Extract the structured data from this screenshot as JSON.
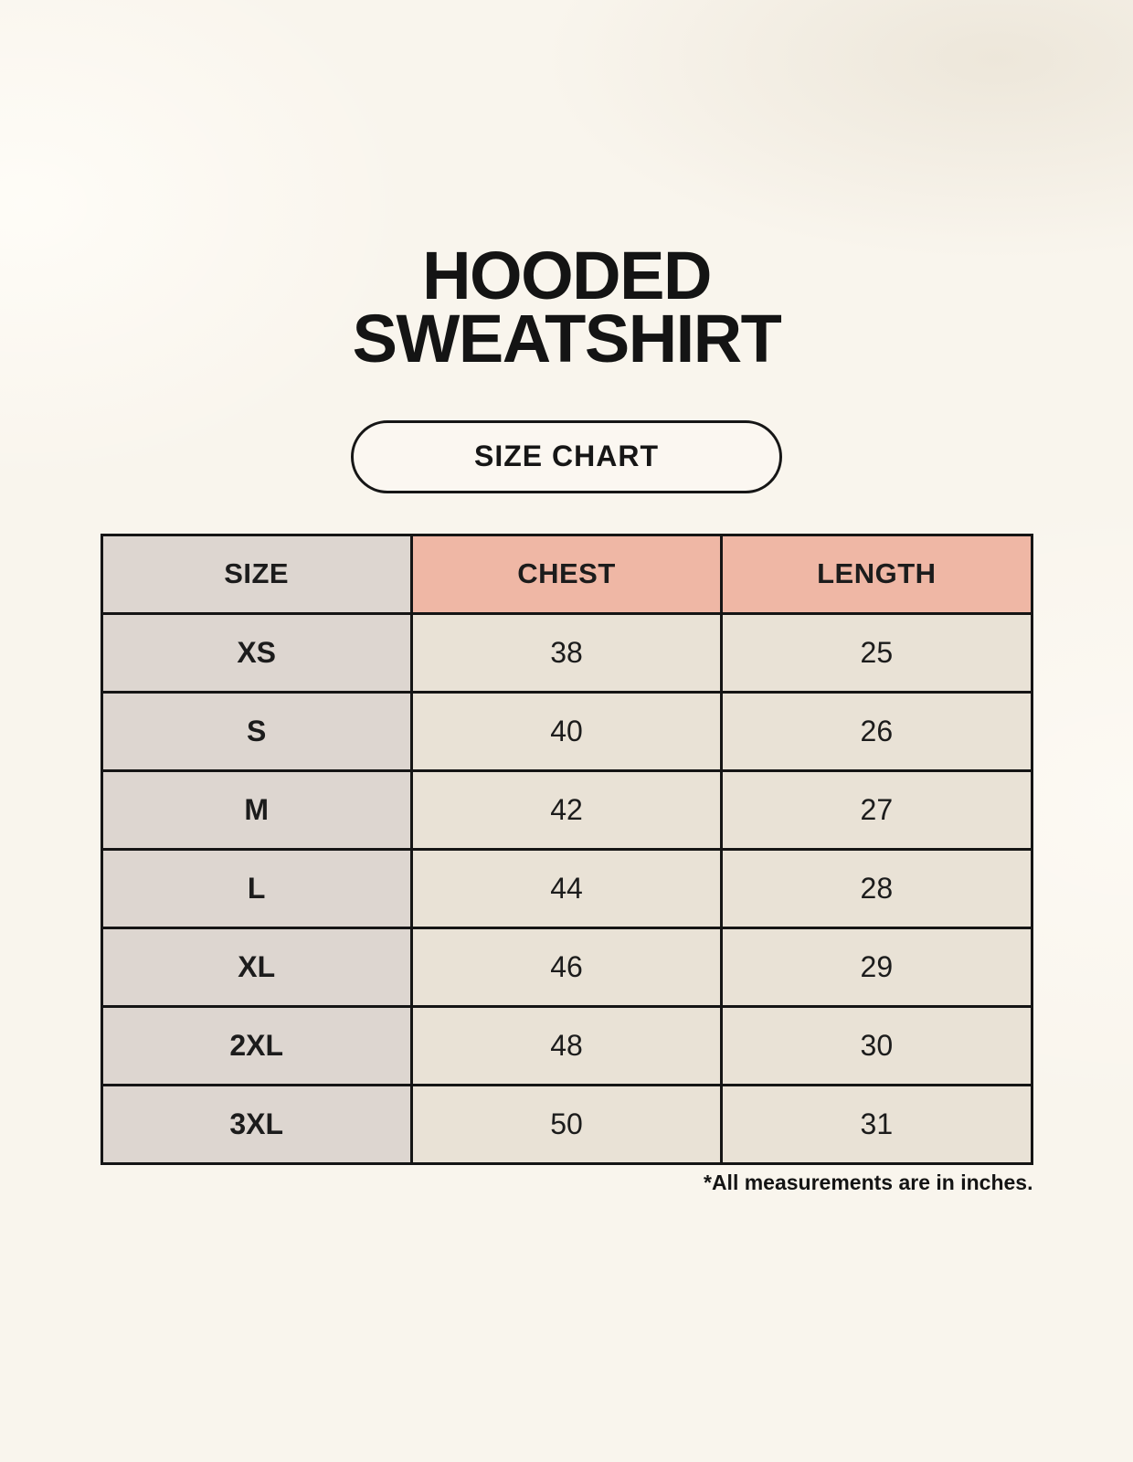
{
  "page": {
    "title_line1": "HOODED",
    "title_line2": "SWEATSHIRT",
    "badge_label": "SIZE CHART",
    "footnote": "*All measurements are in inches."
  },
  "table": {
    "columns": [
      "SIZE",
      "CHEST",
      "LENGTH"
    ],
    "rows": [
      {
        "size": "XS",
        "chest": "38",
        "length": "25"
      },
      {
        "size": "S",
        "chest": "40",
        "length": "26"
      },
      {
        "size": "M",
        "chest": "42",
        "length": "27"
      },
      {
        "size": "L",
        "chest": "44",
        "length": "28"
      },
      {
        "size": "XL",
        "chest": "46",
        "length": "29"
      },
      {
        "size": "2XL",
        "chest": "48",
        "length": "30"
      },
      {
        "size": "3XL",
        "chest": "50",
        "length": "31"
      }
    ]
  },
  "chart_data": {
    "type": "table",
    "title": "HOODED SWEATSHIRT SIZE CHART",
    "columns": [
      "SIZE",
      "CHEST",
      "LENGTH"
    ],
    "units": "inches",
    "rows": [
      [
        "XS",
        38,
        25
      ],
      [
        "S",
        40,
        26
      ],
      [
        "M",
        42,
        27
      ],
      [
        "L",
        44,
        28
      ],
      [
        "XL",
        46,
        29
      ],
      [
        "2XL",
        48,
        30
      ],
      [
        "3XL",
        50,
        31
      ]
    ]
  },
  "colors": {
    "background": "#f9f5ed",
    "header_size_bg": "#ddd6d0",
    "header_measure_bg": "#efb7a5",
    "row_label_bg": "#ddd6d0",
    "data_cell_bg": "#e9e2d6",
    "border": "#151515",
    "text": "#1c1c1c"
  }
}
